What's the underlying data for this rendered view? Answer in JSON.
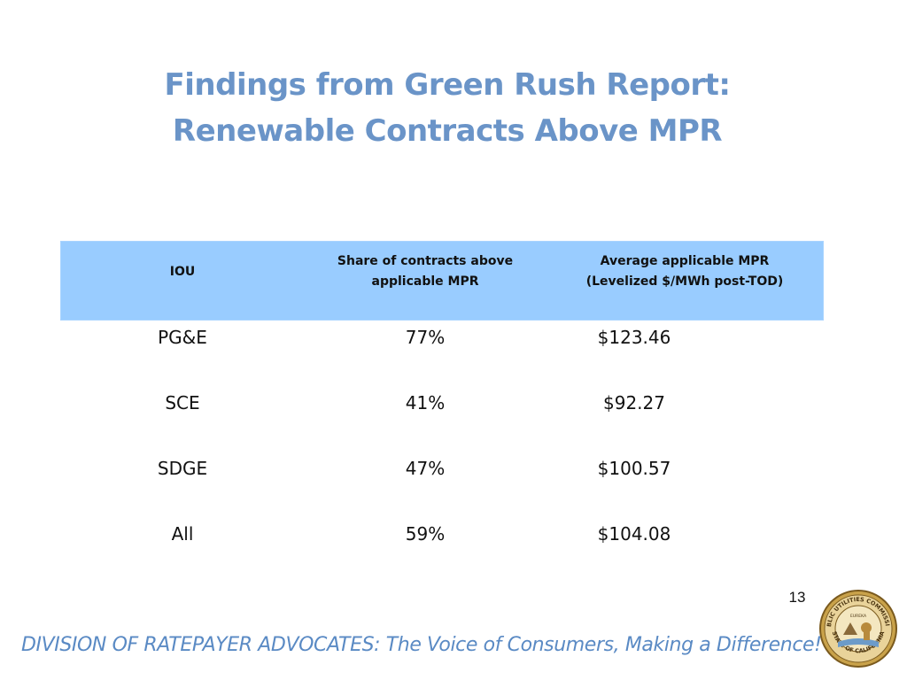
{
  "slide": {
    "title_line1": "Findings from Green Rush Report:",
    "title_line2": "Renewable Contracts Above MPR",
    "page_number": "13",
    "footer": "DIVISION OF RATEPAYER ADVOCATES: The Voice of Consumers, Making a Difference!"
  },
  "table": {
    "headers": {
      "iou": "IOU",
      "share_line1": "Share of contracts above",
      "share_line2": "applicable MPR",
      "avg_line1": "Average applicable MPR",
      "avg_line2": "(Levelized $/MWh post-TOD)"
    },
    "rows": [
      {
        "iou": "PG&E",
        "share": "77%",
        "avg": "$123.46"
      },
      {
        "iou": "SCE",
        "share": "41%",
        "avg": "$92.27"
      },
      {
        "iou": "SDGE",
        "share": "47%",
        "avg": "$100.57"
      },
      {
        "iou": "All",
        "share": "59%",
        "avg": "$104.08"
      }
    ]
  },
  "seal": {
    "icon": "state-seal-icon",
    "text_top": "PUBLIC UTILITIES COMMISSION",
    "text_bottom": "STATE OF CALIFORNIA",
    "motto": "EUREKA"
  },
  "colors": {
    "title": "#6a94c8",
    "header_fill": "#99ccff",
    "footer": "#5a8ac4"
  }
}
